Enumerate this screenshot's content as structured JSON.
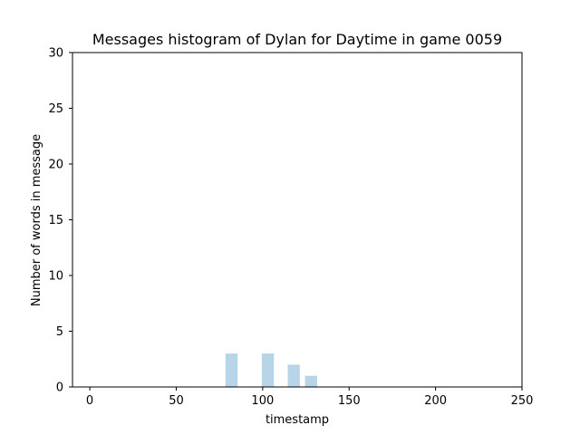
{
  "chart_data": {
    "type": "bar",
    "title": "Messages histogram of Dylan for Daytime in game 0059",
    "xlabel": "timestamp",
    "ylabel": "Number of words in message",
    "xlim": [
      -10,
      250
    ],
    "ylim": [
      0,
      30
    ],
    "xticks": [
      0,
      50,
      100,
      150,
      200,
      250
    ],
    "yticks": [
      0,
      5,
      10,
      15,
      20,
      25,
      30
    ],
    "grid": false,
    "bar_width": 7,
    "bar_color": "#b8d4e8",
    "bars": [
      {
        "x": 82,
        "value": 3
      },
      {
        "x": 103,
        "value": 3
      },
      {
        "x": 118,
        "value": 2
      },
      {
        "x": 128,
        "value": 1
      }
    ]
  }
}
